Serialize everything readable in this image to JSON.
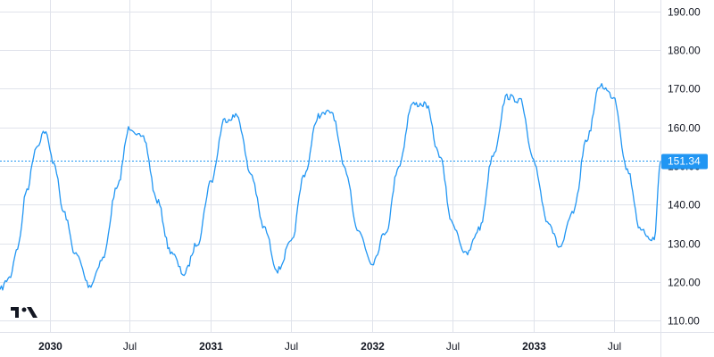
{
  "colors": {
    "series": "#2196f3",
    "grid": "#e0e3eb",
    "text": "#131722",
    "label_bg": "#2196f3",
    "label_text": "#ffffff",
    "logo": "#131722"
  },
  "logo_icon": "tradingview-logo-icon",
  "chart_data": {
    "type": "line",
    "title": "",
    "xlabel": "",
    "ylabel": "",
    "x_ticks": [
      {
        "date": "2030-01-01",
        "label": "2030",
        "bold": true
      },
      {
        "date": "2030-07-01",
        "label": "Jul",
        "bold": false
      },
      {
        "date": "2031-01-01",
        "label": "2031",
        "bold": true
      },
      {
        "date": "2031-07-01",
        "label": "Jul",
        "bold": false
      },
      {
        "date": "2032-01-01",
        "label": "2032",
        "bold": true
      },
      {
        "date": "2032-07-01",
        "label": "Jul",
        "bold": false
      },
      {
        "date": "2033-01-01",
        "label": "2033",
        "bold": true
      },
      {
        "date": "2033-07-01",
        "label": "Jul",
        "bold": false
      }
    ],
    "xlim": [
      "2029-09-10",
      "2033-10-15"
    ],
    "y_ticks": [
      110,
      120,
      130,
      140,
      150,
      160,
      170,
      180,
      190
    ],
    "y_tick_labels": [
      "110.00",
      "120.00",
      "130.00",
      "140.00",
      "150.00",
      "160.00",
      "170.00",
      "180.00",
      "190.00"
    ],
    "ylim": [
      107,
      193
    ],
    "grid": true,
    "last_value": 151.34,
    "last_value_label": "151.34",
    "series": [
      {
        "x": [
          "2029-09-10",
          "2029-10-01",
          "2029-10-20",
          "2029-11-10",
          "2029-12-01",
          "2029-12-20",
          "2030-01-10",
          "2030-02-01",
          "2030-03-01",
          "2030-04-01",
          "2030-05-01",
          "2030-06-01",
          "2030-07-01",
          "2030-08-01",
          "2030-09-01",
          "2030-10-01",
          "2030-11-01",
          "2030-12-01",
          "2031-01-01",
          "2031-02-01",
          "2031-03-01",
          "2031-04-01",
          "2031-05-01",
          "2031-06-01",
          "2031-07-01",
          "2031-08-01",
          "2031-09-01",
          "2031-10-01",
          "2031-11-01",
          "2031-12-01",
          "2032-01-01",
          "2032-02-01",
          "2032-03-01",
          "2032-04-01",
          "2032-05-01",
          "2032-06-01",
          "2032-07-01",
          "2032-08-01",
          "2032-09-01",
          "2032-10-01",
          "2032-11-01",
          "2032-12-01",
          "2033-01-01",
          "2033-02-01",
          "2033-03-01",
          "2033-04-01",
          "2033-05-01",
          "2033-06-01",
          "2033-07-01",
          "2033-08-01",
          "2033-09-01",
          "2033-10-01",
          "2033-10-15"
        ],
        "y": [
          118,
          121,
          129,
          144,
          155,
          159,
          151,
          138,
          127,
          119,
          126,
          144,
          160,
          157,
          141,
          128,
          122,
          130,
          146,
          162,
          163,
          148,
          134,
          123,
          130,
          148,
          163,
          164,
          149,
          133,
          125,
          133,
          150,
          166,
          166,
          153,
          135,
          127,
          134,
          153,
          168,
          167,
          151,
          136,
          129,
          138,
          157,
          171,
          168,
          149,
          133,
          131,
          151.34
        ]
      }
    ]
  }
}
